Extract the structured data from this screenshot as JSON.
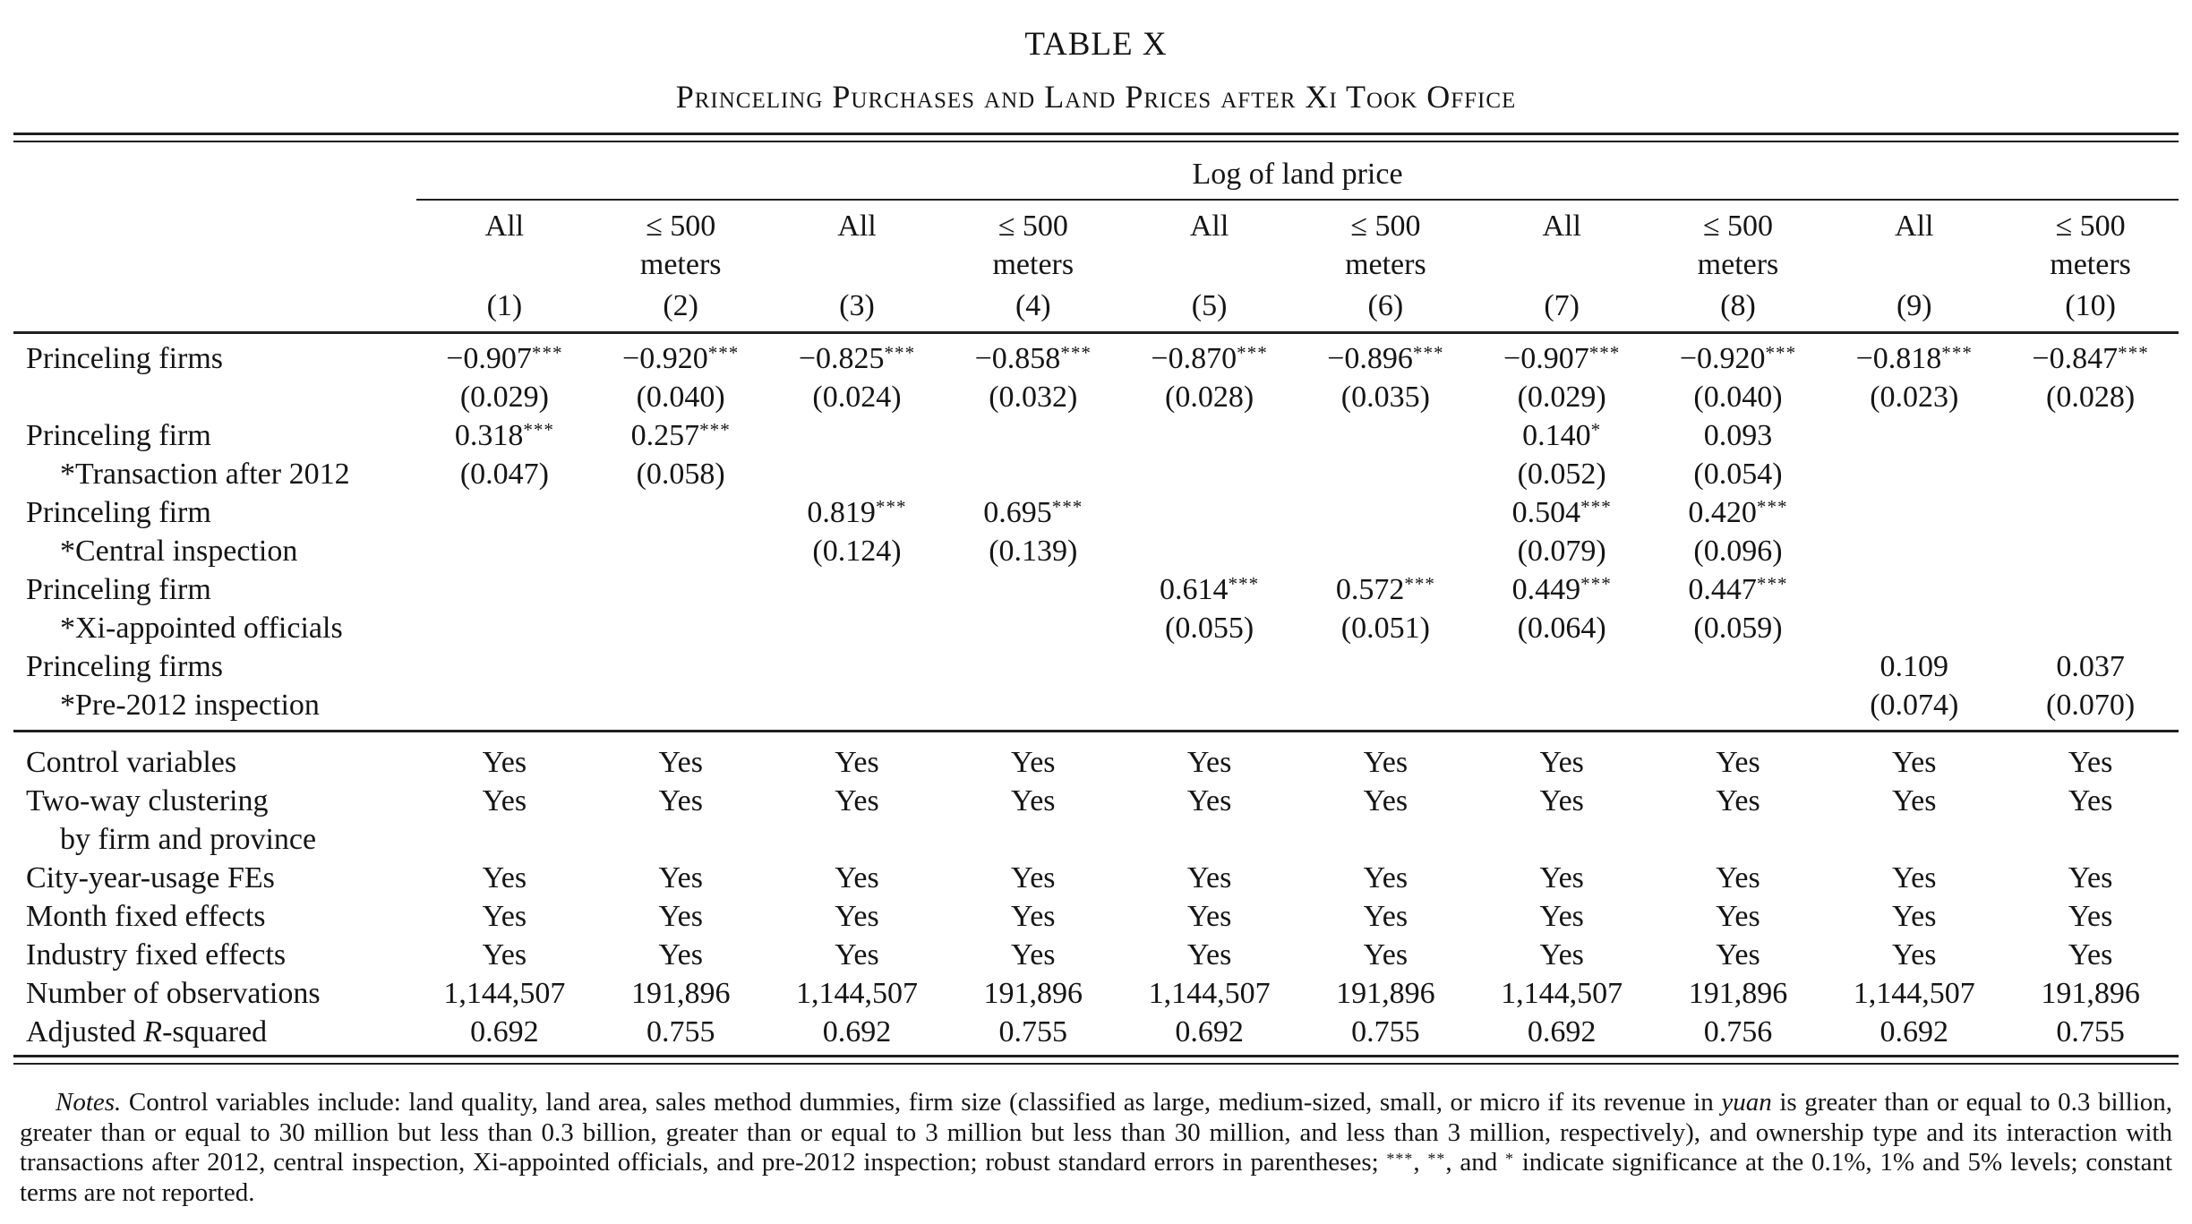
{
  "page": {
    "label": "TABLE X",
    "title": "Princeling Purchases and Land Prices after Xi Took Office"
  },
  "table": {
    "spanner": "Log of land price",
    "col_head_line1": [
      "All",
      "≤ 500",
      "All",
      "≤ 500",
      "All",
      "≤ 500",
      "All",
      "≤ 500",
      "All",
      "≤ 500"
    ],
    "col_head_line2": [
      "",
      "meters",
      "",
      "meters",
      "",
      "meters",
      "",
      "meters",
      "",
      "meters"
    ],
    "col_numbers": [
      "(1)",
      "(2)",
      "(3)",
      "(4)",
      "(5)",
      "(6)",
      "(7)",
      "(8)",
      "(9)",
      "(10)"
    ],
    "coef_rows": [
      {
        "label": [
          {
            "t": "Princeling firms"
          }
        ],
        "sublabel": [],
        "coefs": [
          "−0.907***",
          "−0.920***",
          "−0.825***",
          "−0.858***",
          "−0.870***",
          "−0.896***",
          "−0.907***",
          "−0.920***",
          "−0.818***",
          "−0.847***"
        ],
        "ses": [
          "(0.029)",
          "(0.040)",
          "(0.024)",
          "(0.032)",
          "(0.028)",
          "(0.035)",
          "(0.029)",
          "(0.040)",
          "(0.023)",
          "(0.028)"
        ]
      },
      {
        "label": [
          {
            "t": "Princeling firm"
          }
        ],
        "sublabel": [
          {
            "t": "*Transaction after 2012"
          }
        ],
        "coefs": [
          "0.318***",
          "0.257***",
          "",
          "",
          "",
          "",
          "0.140*",
          "0.093",
          "",
          ""
        ],
        "ses": [
          "(0.047)",
          "(0.058)",
          "",
          "",
          "",
          "",
          "(0.052)",
          "(0.054)",
          "",
          ""
        ]
      },
      {
        "label": [
          {
            "t": "Princeling firm"
          }
        ],
        "sublabel": [
          {
            "t": "*Central inspection"
          }
        ],
        "coefs": [
          "",
          "",
          "0.819***",
          "0.695***",
          "",
          "",
          "0.504***",
          "0.420***",
          "",
          ""
        ],
        "ses": [
          "",
          "",
          "(0.124)",
          "(0.139)",
          "",
          "",
          "(0.079)",
          "(0.096)",
          "",
          ""
        ]
      },
      {
        "label": [
          {
            "t": "Princeling firm"
          }
        ],
        "sublabel": [
          {
            "t": "*Xi-appointed officials"
          }
        ],
        "coefs": [
          "",
          "",
          "",
          "",
          "0.614***",
          "0.572***",
          "0.449***",
          "0.447***",
          "",
          ""
        ],
        "ses": [
          "",
          "",
          "",
          "",
          "(0.055)",
          "(0.051)",
          "(0.064)",
          "(0.059)",
          "",
          ""
        ]
      },
      {
        "label": [
          {
            "t": "Princeling firms"
          }
        ],
        "sublabel": [
          {
            "t": "*Pre-2012 inspection"
          }
        ],
        "coefs": [
          "",
          "",
          "",
          "",
          "",
          "",
          "",
          "",
          "0.109",
          "0.037"
        ],
        "ses": [
          "",
          "",
          "",
          "",
          "",
          "",
          "",
          "",
          "(0.074)",
          "(0.070)"
        ]
      }
    ],
    "bottom_rows": [
      {
        "label": [
          {
            "t": "Control variables"
          }
        ],
        "values": [
          "Yes",
          "Yes",
          "Yes",
          "Yes",
          "Yes",
          "Yes",
          "Yes",
          "Yes",
          "Yes",
          "Yes"
        ]
      },
      {
        "label": [
          {
            "t": "Two-way clustering"
          }
        ],
        "sublabel": [
          {
            "t": "by firm and province"
          }
        ],
        "values": [
          "Yes",
          "Yes",
          "Yes",
          "Yes",
          "Yes",
          "Yes",
          "Yes",
          "Yes",
          "Yes",
          "Yes"
        ]
      },
      {
        "label": [
          {
            "t": "City-year-usage FEs"
          }
        ],
        "values": [
          "Yes",
          "Yes",
          "Yes",
          "Yes",
          "Yes",
          "Yes",
          "Yes",
          "Yes",
          "Yes",
          "Yes"
        ]
      },
      {
        "label": [
          {
            "t": "Month fixed effects"
          }
        ],
        "values": [
          "Yes",
          "Yes",
          "Yes",
          "Yes",
          "Yes",
          "Yes",
          "Yes",
          "Yes",
          "Yes",
          "Yes"
        ]
      },
      {
        "label": [
          {
            "t": "Industry fixed effects"
          }
        ],
        "values": [
          "Yes",
          "Yes",
          "Yes",
          "Yes",
          "Yes",
          "Yes",
          "Yes",
          "Yes",
          "Yes",
          "Yes"
        ]
      },
      {
        "label": [
          {
            "t": "Number of observations"
          }
        ],
        "values": [
          "1,144,507",
          "191,896",
          "1,144,507",
          "191,896",
          "1,144,507",
          "191,896",
          "1,144,507",
          "191,896",
          "1,144,507",
          "191,896"
        ]
      },
      {
        "label": [
          {
            "t": "Adjusted "
          },
          {
            "t": "R",
            "i": true
          },
          {
            "t": "-squared"
          }
        ],
        "values": [
          "0.692",
          "0.755",
          "0.692",
          "0.755",
          "0.692",
          "0.755",
          "0.692",
          "0.756",
          "0.692",
          "0.755"
        ]
      }
    ]
  },
  "notes": {
    "segments": [
      {
        "t": "Notes.",
        "i": true
      },
      {
        "t": " Control variables include: land quality, land area, sales method dummies, firm size (classified as large, medium-sized, small, or micro if its revenue in "
      },
      {
        "t": "yuan",
        "i": true
      },
      {
        "t": " is greater than or equal to 0.3 billion, greater than or equal to 30 million but less than 0.3 billion, greater than or equal to 3 million but less than 30 million, and less than 3 million, respectively), and ownership type and its interaction with transactions after 2012, central inspection, Xi-appointed officials, and pre-2012 inspection; robust standard errors in parentheses; "
      },
      {
        "t": "***",
        "sup": true
      },
      {
        "t": ", "
      },
      {
        "t": "**",
        "sup": true
      },
      {
        "t": ", and "
      },
      {
        "t": "*",
        "sup": true
      },
      {
        "t": " indicate significance at the 0.1%, 1% and 5% levels; constant terms are not reported."
      }
    ]
  }
}
